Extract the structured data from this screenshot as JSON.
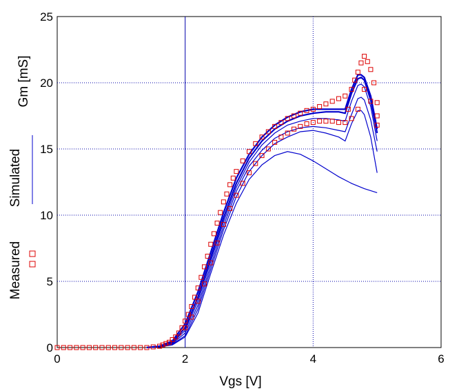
{
  "chart_data": {
    "type": "scatter",
    "xlabel": "Vgs [V]",
    "ylabel": "Gm [mS]",
    "xlim": [
      0,
      6
    ],
    "ylim": [
      0,
      25
    ],
    "xticks": [
      "0",
      "2",
      "4",
      "6"
    ],
    "yticks": [
      "0",
      "5",
      "10",
      "15",
      "20",
      "25"
    ],
    "grid": true,
    "legend": {
      "placement": "left-vertical",
      "simulated_label": "Simulated",
      "measured_label": "Measured"
    },
    "colors": {
      "simulated": "#0000cc",
      "measured": "#dd0000",
      "grid": "#0000aa"
    },
    "series": [
      {
        "name": "Simulated",
        "kind": "line",
        "curves": [
          {
            "x": [
              1.4,
              1.6,
              1.8,
              2.0,
              2.2,
              2.4,
              2.6,
              2.8,
              3.0,
              3.2,
              3.4,
              3.6,
              3.8,
              4.0,
              4.2,
              4.4,
              4.5,
              4.6,
              4.7,
              4.75,
              4.8,
              4.9,
              5.0
            ],
            "y": [
              0,
              0.1,
              0.5,
              1.8,
              4.2,
              7.2,
              10.2,
              12.8,
              14.6,
              15.9,
              16.8,
              17.4,
              17.8,
              18.0,
              18.0,
              18.0,
              18.0,
              19.5,
              20.6,
              20.6,
              20.4,
              19.0,
              16.5
            ]
          },
          {
            "x": [
              1.4,
              1.6,
              1.8,
              2.0,
              2.2,
              2.4,
              2.6,
              2.8,
              3.0,
              3.2,
              3.4,
              3.6,
              3.8,
              4.0,
              4.2,
              4.4,
              4.5,
              4.6,
              4.7,
              4.75,
              4.8,
              4.9,
              5.0
            ],
            "y": [
              0,
              0.1,
              0.4,
              1.5,
              3.8,
              6.8,
              9.8,
              12.4,
              14.3,
              15.6,
              16.5,
              17.1,
              17.5,
              17.7,
              17.8,
              17.8,
              17.7,
              19.2,
              20.3,
              20.4,
              20.2,
              18.7,
              16.2
            ]
          },
          {
            "x": [
              1.4,
              1.6,
              1.8,
              2.0,
              2.2,
              2.4,
              2.6,
              2.8,
              3.0,
              3.2,
              3.4,
              3.6,
              3.8,
              4.0,
              4.2,
              4.4,
              4.5,
              4.6,
              4.7,
              4.75,
              4.8,
              4.9,
              5.0
            ],
            "y": [
              0,
              0.08,
              0.35,
              1.3,
              3.5,
              6.5,
              9.5,
              12.1,
              14.0,
              15.3,
              16.2,
              16.8,
              17.1,
              17.3,
              17.3,
              17.2,
              17.1,
              18.6,
              19.8,
              19.9,
              19.7,
              18.2,
              15.6
            ]
          },
          {
            "x": [
              1.4,
              1.6,
              1.8,
              2.0,
              2.2,
              2.4,
              2.6,
              2.8,
              3.0,
              3.2,
              3.4,
              3.6,
              3.8,
              4.0,
              4.2,
              4.4,
              4.5,
              4.6,
              4.7,
              4.75,
              4.8,
              4.9,
              5.0
            ],
            "y": [
              0,
              0.06,
              0.3,
              1.1,
              3.2,
              6.2,
              9.2,
              11.8,
              13.7,
              14.9,
              15.8,
              16.3,
              16.6,
              16.7,
              16.6,
              16.4,
              16.3,
              17.6,
              18.8,
              18.9,
              18.7,
              17.2,
              14.8
            ]
          },
          {
            "x": [
              1.4,
              1.6,
              1.8,
              2.0,
              2.2,
              2.4,
              2.6,
              2.8,
              3.0,
              3.2,
              3.4,
              3.6,
              3.8,
              4.0,
              4.2,
              4.4,
              4.5,
              4.6,
              4.7,
              4.75,
              4.8,
              4.9,
              5.0
            ],
            "y": [
              0,
              0.05,
              0.25,
              0.9,
              2.9,
              5.9,
              8.9,
              11.4,
              13.3,
              14.5,
              15.4,
              15.9,
              16.3,
              16.4,
              16.2,
              15.9,
              15.6,
              16.9,
              17.9,
              17.9,
              17.6,
              15.9,
              13.2
            ]
          },
          {
            "x": [
              1.4,
              1.6,
              1.8,
              2.0,
              2.2,
              2.4,
              2.6,
              2.8,
              3.0,
              3.2,
              3.4,
              3.6,
              3.8,
              4.0,
              4.2,
              4.4,
              4.6,
              4.8,
              5.0
            ],
            "y": [
              0,
              0.04,
              0.2,
              0.8,
              2.6,
              5.6,
              8.5,
              10.9,
              12.7,
              13.8,
              14.5,
              14.8,
              14.6,
              14.1,
              13.5,
              12.9,
              12.4,
              12.0,
              11.7
            ]
          }
        ]
      },
      {
        "name": "Measured",
        "kind": "scatter",
        "points": [
          [
            0.0,
            0.0
          ],
          [
            0.1,
            0.0
          ],
          [
            0.2,
            0.0
          ],
          [
            0.3,
            0.0
          ],
          [
            0.4,
            0.0
          ],
          [
            0.5,
            0.0
          ],
          [
            0.6,
            0.0
          ],
          [
            0.7,
            0.0
          ],
          [
            0.8,
            0.0
          ],
          [
            0.9,
            0.0
          ],
          [
            1.0,
            0.0
          ],
          [
            1.1,
            0.0
          ],
          [
            1.2,
            0.0
          ],
          [
            1.3,
            0.0
          ],
          [
            1.4,
            0.0
          ],
          [
            1.5,
            0.05
          ],
          [
            1.6,
            0.1
          ],
          [
            1.65,
            0.2
          ],
          [
            1.7,
            0.3
          ],
          [
            1.75,
            0.4
          ],
          [
            1.8,
            0.6
          ],
          [
            1.85,
            0.8
          ],
          [
            1.9,
            1.1
          ],
          [
            1.95,
            1.5
          ],
          [
            2.0,
            2.0
          ],
          [
            2.0,
            1.5
          ],
          [
            2.05,
            2.5
          ],
          [
            2.1,
            3.1
          ],
          [
            2.1,
            2.3
          ],
          [
            2.15,
            3.8
          ],
          [
            2.2,
            4.5
          ],
          [
            2.2,
            3.5
          ],
          [
            2.25,
            5.3
          ],
          [
            2.3,
            6.1
          ],
          [
            2.3,
            4.8
          ],
          [
            2.35,
            6.9
          ],
          [
            2.4,
            7.8
          ],
          [
            2.4,
            6.4
          ],
          [
            2.45,
            8.6
          ],
          [
            2.5,
            9.4
          ],
          [
            2.5,
            7.9
          ],
          [
            2.55,
            10.2
          ],
          [
            2.6,
            11.0
          ],
          [
            2.6,
            9.3
          ],
          [
            2.65,
            11.6
          ],
          [
            2.7,
            12.3
          ],
          [
            2.7,
            10.5
          ],
          [
            2.75,
            12.8
          ],
          [
            2.8,
            13.3
          ],
          [
            2.8,
            11.5
          ],
          [
            2.9,
            14.1
          ],
          [
            2.9,
            12.4
          ],
          [
            3.0,
            14.8
          ],
          [
            3.0,
            13.2
          ],
          [
            3.1,
            15.4
          ],
          [
            3.1,
            13.9
          ],
          [
            3.2,
            15.9
          ],
          [
            3.2,
            14.5
          ],
          [
            3.3,
            16.3
          ],
          [
            3.3,
            15.0
          ],
          [
            3.4,
            16.7
          ],
          [
            3.4,
            15.5
          ],
          [
            3.5,
            17.0
          ],
          [
            3.5,
            15.9
          ],
          [
            3.6,
            17.3
          ],
          [
            3.6,
            16.2
          ],
          [
            3.7,
            17.5
          ],
          [
            3.7,
            16.5
          ],
          [
            3.8,
            17.7
          ],
          [
            3.8,
            16.7
          ],
          [
            3.9,
            17.9
          ],
          [
            3.9,
            16.9
          ],
          [
            4.0,
            18.0
          ],
          [
            4.0,
            17.0
          ],
          [
            4.1,
            18.2
          ],
          [
            4.1,
            17.1
          ],
          [
            4.2,
            18.4
          ],
          [
            4.2,
            17.1
          ],
          [
            4.3,
            18.6
          ],
          [
            4.3,
            17.1
          ],
          [
            4.4,
            18.8
          ],
          [
            4.4,
            17.0
          ],
          [
            4.5,
            19.0
          ],
          [
            4.5,
            17.0
          ],
          [
            4.55,
            18.0
          ],
          [
            4.6,
            19.5
          ],
          [
            4.6,
            17.3
          ],
          [
            4.65,
            20.2
          ],
          [
            4.7,
            20.8
          ],
          [
            4.7,
            18.0
          ],
          [
            4.75,
            21.5
          ],
          [
            4.8,
            22.0
          ],
          [
            4.8,
            19.5
          ],
          [
            4.85,
            21.6
          ],
          [
            4.9,
            21.0
          ],
          [
            4.9,
            18.6
          ],
          [
            4.95,
            20.0
          ],
          [
            5.0,
            18.5
          ],
          [
            5.0,
            17.5
          ],
          [
            5.0,
            16.8
          ]
        ]
      }
    ]
  }
}
